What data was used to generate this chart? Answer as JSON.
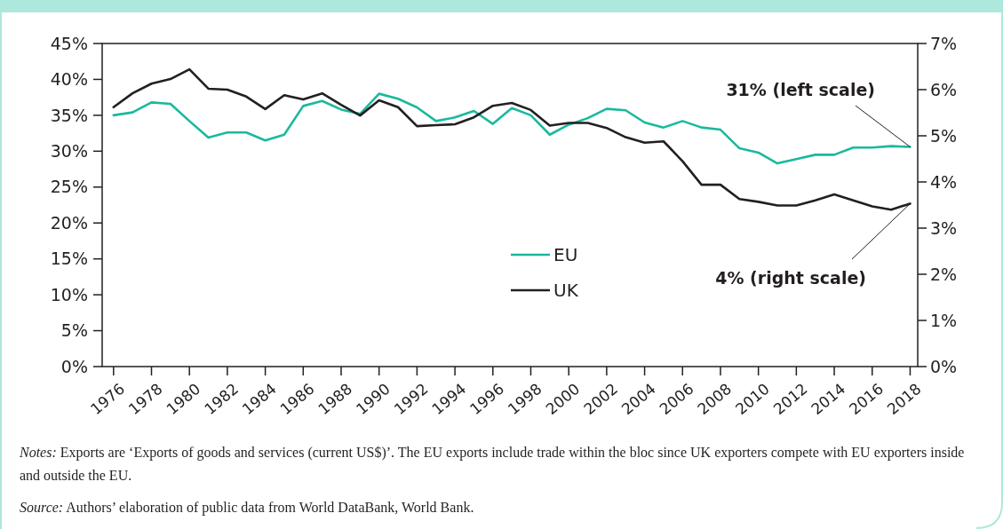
{
  "chart_data": {
    "type": "line",
    "x": [
      1976,
      1977,
      1978,
      1979,
      1980,
      1981,
      1982,
      1983,
      1984,
      1985,
      1986,
      1987,
      1988,
      1989,
      1990,
      1991,
      1992,
      1993,
      1994,
      1995,
      1996,
      1997,
      1998,
      1999,
      2000,
      2001,
      2002,
      2003,
      2004,
      2005,
      2006,
      2007,
      2008,
      2009,
      2010,
      2011,
      2012,
      2013,
      2014,
      2015,
      2016,
      2017,
      2018
    ],
    "series": [
      {
        "name": "EU",
        "color": "#1ab99c",
        "values": [
          35.0,
          35.4,
          36.8,
          36.6,
          34.2,
          31.9,
          32.6,
          32.6,
          31.5,
          32.3,
          36.3,
          37.0,
          35.8,
          35.2,
          38.0,
          37.3,
          36.1,
          34.2,
          34.7,
          35.6,
          33.8,
          36.0,
          35.0,
          32.3,
          33.7,
          34.6,
          35.9,
          35.7,
          34.0,
          33.3,
          34.2,
          33.3,
          33.0,
          30.4,
          29.8,
          28.3,
          28.9,
          29.5,
          29.5,
          30.5,
          30.5,
          30.7,
          30.6
        ]
      },
      {
        "name": "UK",
        "color": "#231f20",
        "axis": "y2",
        "values": [
          5.62,
          5.92,
          6.13,
          6.23,
          6.44,
          6.02,
          6.0,
          5.85,
          5.58,
          5.88,
          5.79,
          5.92,
          5.67,
          5.44,
          5.77,
          5.62,
          5.21,
          5.23,
          5.25,
          5.4,
          5.65,
          5.71,
          5.56,
          5.22,
          5.28,
          5.28,
          5.17,
          4.97,
          4.85,
          4.88,
          4.45,
          3.94,
          3.94,
          3.63,
          3.57,
          3.49,
          3.49,
          3.6,
          3.73,
          3.6,
          3.47,
          3.4,
          3.53
        ]
      }
    ],
    "xlim": [
      1975.4,
      2018.4
    ],
    "xticks": [
      1976,
      1978,
      1980,
      1982,
      1984,
      1986,
      1988,
      1990,
      1992,
      1994,
      1996,
      1998,
      2000,
      2002,
      2004,
      2006,
      2008,
      2010,
      2012,
      2014,
      2016,
      2018
    ],
    "ylim": [
      0,
      45
    ],
    "yticks": [
      {
        "value": 0,
        "label": "0%"
      },
      {
        "value": 5,
        "label": "5%"
      },
      {
        "value": 10,
        "label": "10%"
      },
      {
        "value": 15,
        "label": "15%"
      },
      {
        "value": 20,
        "label": "20%"
      },
      {
        "value": 25,
        "label": "25%"
      },
      {
        "value": 30,
        "label": "30%"
      },
      {
        "value": 35,
        "label": "35%"
      },
      {
        "value": 40,
        "label": "40%"
      },
      {
        "value": 45,
        "label": "45%"
      }
    ],
    "y2lim": [
      0,
      7
    ],
    "y2ticks": [
      {
        "value": 0,
        "label": "0%"
      },
      {
        "value": 1,
        "label": "1%"
      },
      {
        "value": 2,
        "label": "2%"
      },
      {
        "value": 3,
        "label": "3%"
      },
      {
        "value": 4,
        "label": "4%"
      },
      {
        "value": 5,
        "label": "5%"
      },
      {
        "value": 6,
        "label": "6%"
      },
      {
        "value": 7,
        "label": "7%"
      }
    ],
    "legend": "center",
    "grid": false,
    "annotations": [
      {
        "text": "31% (left scale)",
        "x": 2018,
        "y": 30.6
      },
      {
        "text": "4% (right scale)",
        "x": 2018,
        "y": 22.7
      },
      "Notes: Exports are ‘Exports of goods and services (current US$)’. The EU exports include trade within the bloc since UK exporters compete with EU exporters inside and outside the EU.",
      "Source: Authors’ elaboration of public data from World DataBank, World Bank."
    ]
  }
}
